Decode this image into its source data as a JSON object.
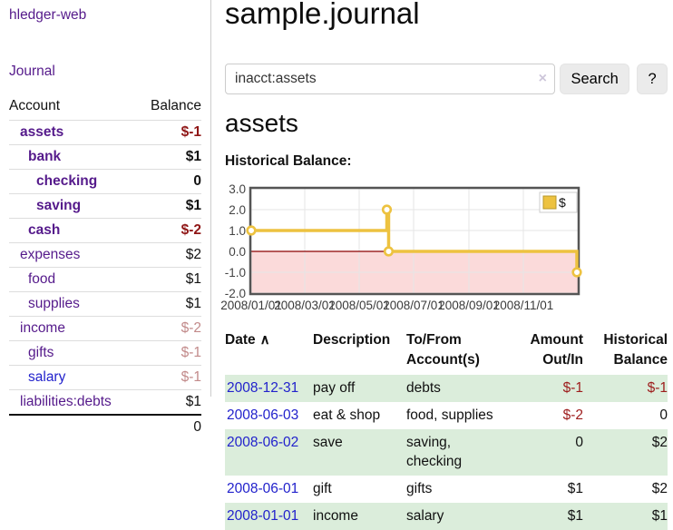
{
  "colors": {
    "accent_purple": "#551a8b",
    "link_blue": "#2222cc",
    "negative": "#8f1616",
    "negative_muted": "#c28a8a",
    "row_green": "#dbeddb",
    "series_gold": "#edc240",
    "zero_line": "#8b0000",
    "negative_region": "#fbdada",
    "grid": "#e6e6e6",
    "plot_border": "#555555"
  },
  "sidebar": {
    "app_title": "hledger-web",
    "nav_journal": "Journal",
    "account_header": "Account",
    "balance_header": "Balance",
    "rows": [
      {
        "account": "assets",
        "balance": "$-1",
        "depth": 1,
        "current": true,
        "balance_tone": "negative"
      },
      {
        "account": "bank",
        "balance": "$1",
        "depth": 2,
        "current": true,
        "balance_tone": "normal"
      },
      {
        "account": "checking",
        "balance": "0",
        "depth": 3,
        "current": true,
        "balance_tone": "normal"
      },
      {
        "account": "saving",
        "balance": "$1",
        "depth": 3,
        "current": true,
        "balance_tone": "normal"
      },
      {
        "account": "cash",
        "balance": "$-2",
        "depth": 2,
        "current": true,
        "balance_tone": "negative"
      },
      {
        "account": "expenses",
        "balance": "$2",
        "depth": 1,
        "current": false,
        "balance_tone": "normal"
      },
      {
        "account": "food",
        "balance": "$1",
        "depth": 2,
        "current": false,
        "balance_tone": "normal"
      },
      {
        "account": "supplies",
        "balance": "$1",
        "depth": 2,
        "current": false,
        "balance_tone": "normal"
      },
      {
        "account": "income",
        "balance": "$-2",
        "depth": 1,
        "current": false,
        "balance_tone": "negative-muted"
      },
      {
        "account": "gifts",
        "balance": "$-1",
        "depth": 2,
        "current": false,
        "balance_tone": "negative-muted"
      },
      {
        "account": "salary",
        "balance": "$-1",
        "depth": 2,
        "current": false,
        "balance_tone": "negative-muted",
        "link_tone": "unvisited"
      },
      {
        "account": "liabilities:debts",
        "balance": "$1",
        "depth": 1,
        "current": false,
        "balance_tone": "normal"
      }
    ],
    "total": "0"
  },
  "main": {
    "title": "sample.journal",
    "search": {
      "value": "inacct:assets",
      "clear_icon": "×",
      "button_label": "Search",
      "help_label": "?"
    },
    "account_heading": "assets",
    "chart_label": "Historical Balance:"
  },
  "chart_data": {
    "type": "line",
    "title": "Historical Balance",
    "legend_label": "$",
    "legend_position": "top-right",
    "grid": true,
    "ylim": [
      -2,
      3
    ],
    "x_domain": [
      "2008-01-01",
      "2009-01-01"
    ],
    "y_ticks": [
      {
        "label": "3.0",
        "value": 3
      },
      {
        "label": "2.0",
        "value": 2
      },
      {
        "label": "1.0",
        "value": 1
      },
      {
        "label": "0.0",
        "value": 0
      },
      {
        "label": "-1.0",
        "value": -1
      },
      {
        "label": "-2.0",
        "value": -2
      }
    ],
    "x_ticks": [
      {
        "label": "2008/01/01",
        "date": "2008-01-01"
      },
      {
        "label": "2008/03/01",
        "date": "2008-03-01"
      },
      {
        "label": "2008/05/01",
        "date": "2008-05-01"
      },
      {
        "label": "2008/07/01",
        "date": "2008-07-01"
      },
      {
        "label": "2008/09/01",
        "date": "2008-09-01"
      },
      {
        "label": "2008/11/01",
        "date": "2008-11-01"
      }
    ],
    "series": [
      {
        "name": "$",
        "color": "#edc240",
        "step": true,
        "points": [
          {
            "date": "2008-01-01",
            "value": 1
          },
          {
            "date": "2008-06-01",
            "value": 2
          },
          {
            "date": "2008-06-03",
            "value": 0
          },
          {
            "date": "2008-12-31",
            "value": -1
          }
        ]
      }
    ]
  },
  "register": {
    "headers": {
      "date": "Date",
      "sort_icon": "∧",
      "description": "Description",
      "accounts": "To/From Account(s)",
      "amount": "Amount Out/In",
      "balance": "Historical Balance"
    },
    "rows": [
      {
        "date": "2008-12-31",
        "description": "pay off",
        "accounts": "debts",
        "amount": "$-1",
        "balance": "$-1",
        "amount_tone": "negative",
        "balance_tone": "negative"
      },
      {
        "date": "2008-06-03",
        "description": "eat & shop",
        "accounts": "food, supplies",
        "amount": "$-2",
        "balance": "0",
        "amount_tone": "negative",
        "balance_tone": "normal"
      },
      {
        "date": "2008-06-02",
        "description": "save",
        "accounts": "saving, checking",
        "amount": "0",
        "balance": "$2",
        "amount_tone": "normal",
        "balance_tone": "normal"
      },
      {
        "date": "2008-06-01",
        "description": "gift",
        "accounts": "gifts",
        "amount": "$1",
        "balance": "$2",
        "amount_tone": "normal",
        "balance_tone": "normal"
      },
      {
        "date": "2008-01-01",
        "description": "income",
        "accounts": "salary",
        "amount": "$1",
        "balance": "$1",
        "amount_tone": "normal",
        "balance_tone": "normal"
      }
    ]
  }
}
